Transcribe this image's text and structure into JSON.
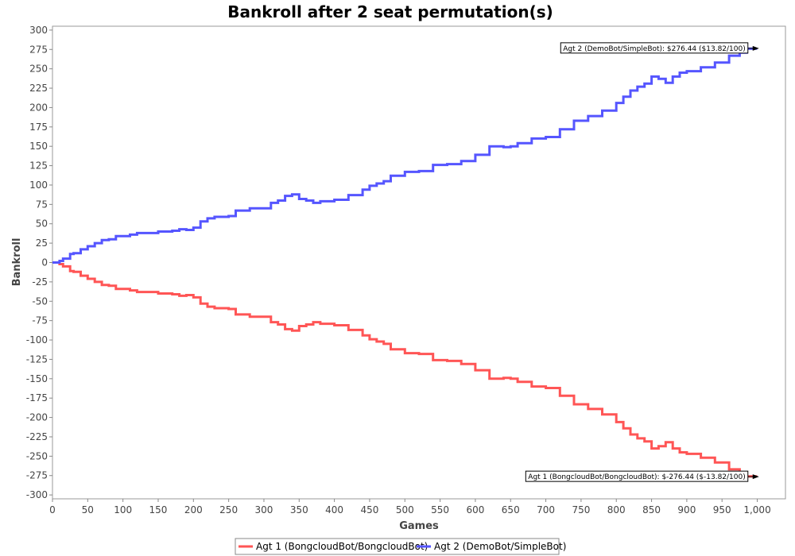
{
  "chart_data": {
    "type": "line",
    "title": "Bankroll after 2 seat permutation(s)",
    "xlabel": "Games",
    "ylabel": "Bankroll",
    "xlim": [
      0,
      1040
    ],
    "ylim": [
      -305,
      305
    ],
    "x_ticks": [
      0,
      50,
      100,
      150,
      200,
      250,
      300,
      350,
      400,
      450,
      500,
      550,
      600,
      650,
      700,
      750,
      800,
      850,
      900,
      950,
      1000
    ],
    "x_tick_labels": [
      "0",
      "50",
      "100",
      "150",
      "200",
      "250",
      "300",
      "350",
      "400",
      "450",
      "500",
      "550",
      "600",
      "650",
      "700",
      "750",
      "800",
      "850",
      "900",
      "950",
      "1,000"
    ],
    "y_ticks": [
      -300,
      -275,
      -250,
      -225,
      -200,
      -175,
      -150,
      -125,
      -100,
      -75,
      -50,
      -25,
      0,
      25,
      50,
      75,
      100,
      125,
      150,
      175,
      200,
      225,
      250,
      275,
      300
    ],
    "grid": false,
    "legend_position": "bottom",
    "series": [
      {
        "name": "Agt 1 (BongcloudBot/BongcloudBot)",
        "color": "#ff5555",
        "x": [
          0,
          10,
          15,
          25,
          30,
          40,
          50,
          60,
          70,
          80,
          90,
          100,
          110,
          120,
          130,
          150,
          170,
          180,
          190,
          200,
          210,
          220,
          230,
          250,
          260,
          280,
          300,
          310,
          320,
          330,
          340,
          350,
          360,
          370,
          380,
          400,
          420,
          440,
          450,
          460,
          470,
          480,
          500,
          520,
          540,
          560,
          580,
          600,
          620,
          640,
          650,
          660,
          680,
          700,
          720,
          740,
          760,
          780,
          800,
          810,
          820,
          830,
          840,
          850,
          860,
          870,
          880,
          890,
          900,
          920,
          940,
          960,
          975,
          985,
          998
        ],
        "values": [
          0,
          -2,
          -5,
          -11,
          -12,
          -17,
          -21,
          -25,
          -29,
          -30,
          -34,
          -34,
          -36,
          -38,
          -38,
          -40,
          -41,
          -43,
          -42,
          -45,
          -53,
          -57,
          -59,
          -60,
          -67,
          -70,
          -70,
          -77,
          -80,
          -86,
          -88,
          -82,
          -80,
          -77,
          -79,
          -81,
          -87,
          -94,
          -99,
          -102,
          -105,
          -112,
          -117,
          -118,
          -126,
          -127,
          -131,
          -139,
          -150,
          -149,
          -150,
          -154,
          -160,
          -162,
          -172,
          -183,
          -189,
          -196,
          -206,
          -214,
          -222,
          -227,
          -231,
          -240,
          -237,
          -232,
          -240,
          -245,
          -247,
          -252,
          -258,
          -267,
          -271,
          -276,
          -276.44
        ]
      },
      {
        "name": "Agt 2 (DemoBot/SimpleBot)",
        "color": "#5555ff",
        "x": [
          0,
          10,
          15,
          25,
          30,
          40,
          50,
          60,
          70,
          80,
          90,
          100,
          110,
          120,
          130,
          150,
          170,
          180,
          190,
          200,
          210,
          220,
          230,
          250,
          260,
          280,
          300,
          310,
          320,
          330,
          340,
          350,
          360,
          370,
          380,
          400,
          420,
          440,
          450,
          460,
          470,
          480,
          500,
          520,
          540,
          560,
          580,
          600,
          620,
          640,
          650,
          660,
          680,
          700,
          720,
          740,
          760,
          780,
          800,
          810,
          820,
          830,
          840,
          850,
          860,
          870,
          880,
          890,
          900,
          920,
          940,
          960,
          975,
          985,
          998
        ],
        "values": [
          0,
          2,
          5,
          11,
          12,
          17,
          21,
          25,
          29,
          30,
          34,
          34,
          36,
          38,
          38,
          40,
          41,
          43,
          42,
          45,
          53,
          57,
          59,
          60,
          67,
          70,
          70,
          77,
          80,
          86,
          88,
          82,
          80,
          77,
          79,
          81,
          87,
          94,
          99,
          102,
          105,
          112,
          117,
          118,
          126,
          127,
          131,
          139,
          150,
          149,
          150,
          154,
          160,
          162,
          172,
          183,
          189,
          196,
          206,
          214,
          222,
          227,
          231,
          240,
          237,
          232,
          240,
          245,
          247,
          252,
          258,
          267,
          271,
          276,
          276.44
        ]
      }
    ],
    "annotations": [
      {
        "text": "Agt 2 (DemoBot/SimpleBot): $276.44 ($13.82/100)",
        "x": 998,
        "y": 276.44,
        "series": 1
      },
      {
        "text": "Agt 1 (BongcloudBot/BongcloudBot): $-276.44 ($-13.82/100)",
        "x": 998,
        "y": -276.44,
        "series": 0
      }
    ]
  }
}
